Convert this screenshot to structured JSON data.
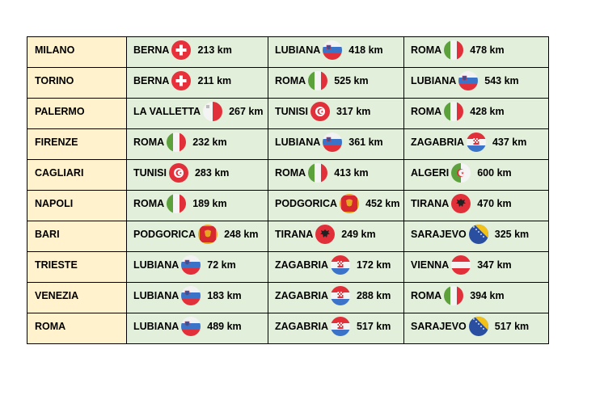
{
  "rows": [
    {
      "city": "MILANO",
      "dests": [
        {
          "name": "BERNA",
          "flag": "switzerland-flag-icon",
          "km": "213 km"
        },
        {
          "name": "LUBIANA",
          "flag": "slovenia-flag-icon",
          "km": "418 km"
        },
        {
          "name": "ROMA",
          "flag": "italy-flag-icon",
          "km": "478 km"
        }
      ]
    },
    {
      "city": "TORINO",
      "dests": [
        {
          "name": "BERNA",
          "flag": "switzerland-flag-icon",
          "km": "211 km"
        },
        {
          "name": "ROMA",
          "flag": "italy-flag-icon",
          "km": "525 km"
        },
        {
          "name": "LUBIANA",
          "flag": "slovenia-flag-icon",
          "km": "543 km"
        }
      ]
    },
    {
      "city": "PALERMO",
      "dests": [
        {
          "name": "LA VALLETTA",
          "flag": "malta-flag-icon",
          "km": "267 km"
        },
        {
          "name": "TUNISI",
          "flag": "tunisia-flag-icon",
          "km": "317 km"
        },
        {
          "name": "ROMA",
          "flag": "italy-flag-icon",
          "km": "428 km"
        }
      ]
    },
    {
      "city": "FIRENZE",
      "dests": [
        {
          "name": "ROMA",
          "flag": "italy-flag-icon",
          "km": "232 km"
        },
        {
          "name": "LUBIANA",
          "flag": "slovenia-flag-icon",
          "km": "361 km"
        },
        {
          "name": "ZAGABRIA",
          "flag": "croatia-flag-icon",
          "km": "437 km"
        }
      ]
    },
    {
      "city": "CAGLIARI",
      "dests": [
        {
          "name": "TUNISI",
          "flag": "tunisia-flag-icon",
          "km": "283 km"
        },
        {
          "name": "ROMA",
          "flag": "italy-flag-icon",
          "km": "413 km"
        },
        {
          "name": "ALGERI",
          "flag": "algeria-flag-icon",
          "km": "600 km"
        }
      ]
    },
    {
      "city": "NAPOLI",
      "dests": [
        {
          "name": "ROMA",
          "flag": "italy-flag-icon",
          "km": "189 km"
        },
        {
          "name": "PODGORICA",
          "flag": "montenegro-flag-icon",
          "km": "452 km"
        },
        {
          "name": "TIRANA",
          "flag": "albania-flag-icon",
          "km": "470 km"
        }
      ]
    },
    {
      "city": "BARI",
      "dests": [
        {
          "name": "PODGORICA",
          "flag": "montenegro-flag-icon",
          "km": "248 km"
        },
        {
          "name": "TIRANA",
          "flag": "albania-flag-icon",
          "km": "249 km"
        },
        {
          "name": "SARAJEVO",
          "flag": "bosnia-flag-icon",
          "km": "325 km"
        }
      ]
    },
    {
      "city": "TRIESTE",
      "dests": [
        {
          "name": "LUBIANA",
          "flag": "slovenia-flag-icon",
          "km": "72 km"
        },
        {
          "name": "ZAGABRIA",
          "flag": "croatia-flag-icon",
          "km": "172 km"
        },
        {
          "name": "VIENNA",
          "flag": "austria-flag-icon",
          "km": "347 km"
        }
      ]
    },
    {
      "city": "VENEZIA",
      "dests": [
        {
          "name": "LUBIANA",
          "flag": "slovenia-flag-icon",
          "km": "183 km"
        },
        {
          "name": "ZAGABRIA",
          "flag": "croatia-flag-icon",
          "km": "288 km"
        },
        {
          "name": "ROMA",
          "flag": "italy-flag-icon",
          "km": "394 km"
        }
      ]
    },
    {
      "city": "ROMA",
      "dests": [
        {
          "name": "LUBIANA",
          "flag": "slovenia-flag-icon",
          "km": "489 km"
        },
        {
          "name": "ZAGABRIA",
          "flag": "croatia-flag-icon",
          "km": "517 km"
        },
        {
          "name": "SARAJEVO",
          "flag": "bosnia-flag-icon",
          "km": "517 km"
        }
      ]
    }
  ],
  "colors": {
    "city_bg": "#fff2cc",
    "dest_bg": "#e2efda",
    "border": "#000000"
  }
}
